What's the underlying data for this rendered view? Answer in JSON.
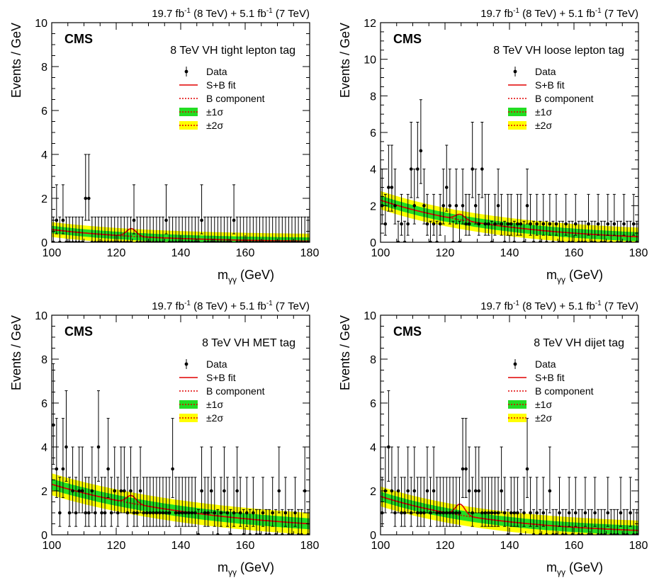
{
  "page": {
    "lumi_main": "19.7 fb",
    "lumi_sup": "-1",
    "lumi_mid": " (8 TeV) + 5.1 fb",
    "lumi_sup2": "-1",
    "lumi_end": " (7 TeV)"
  },
  "colors": {
    "sb_fit": "#e00000",
    "b_component": "#e00000",
    "one_sigma": "#22dd22",
    "two_sigma": "#ffff00",
    "data": "#000000"
  },
  "chart_data": [
    {
      "type": "scatter",
      "tag": "8 TeV VH tight lepton tag",
      "experiment": "CMS",
      "xlabel": "m",
      "xlabel_sub": "γγ",
      "xlabel_unit": " (GeV)",
      "ylabel": "Events / GeV",
      "xlim": [
        100,
        180
      ],
      "ylim": [
        0,
        10
      ],
      "xticks": [
        100,
        120,
        140,
        160,
        180
      ],
      "yticks": [
        0,
        2,
        4,
        6,
        8,
        10
      ],
      "legend": [
        "Data",
        "S+B fit",
        "B component",
        "±1σ",
        "±2σ"
      ],
      "legend_position": "top-right",
      "background": {
        "b0": 0.58,
        "b180": 0.05,
        "band1": 0.17,
        "band2": 0.34
      },
      "signal": {
        "mass": 124.7,
        "amplitude": 0.35,
        "width": 1.5
      },
      "data_points": {
        "100": 0,
        "101": 1,
        "103": 1,
        "110": 2,
        "111": 2,
        "125": 1,
        "135": 1,
        "146": 1,
        "156": 1
      }
    },
    {
      "type": "scatter",
      "tag": "8 TeV VH loose lepton tag",
      "experiment": "CMS",
      "xlabel": "m",
      "xlabel_sub": "γγ",
      "xlabel_unit": " (GeV)",
      "ylabel": "Events / GeV",
      "xlim": [
        100,
        180
      ],
      "ylim": [
        0,
        12
      ],
      "xticks": [
        100,
        120,
        140,
        160,
        180
      ],
      "yticks": [
        0,
        2,
        4,
        6,
        8,
        10,
        12
      ],
      "legend": [
        "Data",
        "S+B fit",
        "B component",
        "±1σ",
        "±2σ"
      ],
      "legend_position": "top-right",
      "background": {
        "b0": 2.3,
        "b180": 0.3,
        "band1": 0.25,
        "band2": 0.5
      },
      "signal": {
        "mass": 124.7,
        "amplitude": 0.3,
        "width": 1.5
      },
      "data_points": {
        "100": 2,
        "101": 1,
        "102": 3,
        "103": 3,
        "104": 2,
        "106": 1,
        "108": 1,
        "109": 4,
        "110": 2,
        "111": 4,
        "112": 5,
        "113": 2,
        "114": 1,
        "116": 1,
        "118": 1,
        "119": 2,
        "120": 3,
        "121": 2,
        "123": 2,
        "125": 2,
        "126": 1,
        "127": 1,
        "128": 4,
        "129": 2,
        "130": 1,
        "131": 4,
        "132": 1,
        "133": 1,
        "135": 1,
        "136": 2,
        "137": 1,
        "139": 1,
        "140": 1,
        "142": 1,
        "143": 1,
        "145": 2,
        "146": 1,
        "148": 1,
        "150": 1,
        "152": 1,
        "154": 1,
        "157": 1,
        "160": 1,
        "164": 1,
        "167": 1,
        "170": 1,
        "172": 1,
        "175": 1,
        "178": 1
      }
    },
    {
      "type": "scatter",
      "tag": "8 TeV VH MET tag",
      "experiment": "CMS",
      "xlabel": "m",
      "xlabel_sub": "γγ",
      "xlabel_unit": " (GeV)",
      "ylabel": "Events / GeV",
      "xlim": [
        100,
        180
      ],
      "ylim": [
        0,
        10
      ],
      "xticks": [
        100,
        120,
        140,
        160,
        180
      ],
      "yticks": [
        0,
        2,
        4,
        6,
        8,
        10
      ],
      "legend": [
        "Data",
        "S+B fit",
        "B component",
        "±1σ",
        "±2σ"
      ],
      "legend_position": "top-right",
      "background": {
        "b0": 2.3,
        "b180": 0.5,
        "band1": 0.25,
        "band2": 0.5
      },
      "signal": {
        "mass": 124.7,
        "amplitude": 0.35,
        "width": 1.5
      },
      "data_points": {
        "100": 5,
        "101": 3,
        "102": 1,
        "103": 3,
        "104": 4,
        "105": 1,
        "106": 2,
        "107": 1,
        "108": 2,
        "109": 2,
        "110": 1,
        "111": 1,
        "112": 2,
        "113": 1,
        "114": 4,
        "115": 1,
        "116": 1,
        "117": 3,
        "118": 1,
        "119": 2,
        "120": 1,
        "121": 2,
        "122": 2,
        "123": 1,
        "124": 2,
        "125": 1,
        "126": 1,
        "127": 2,
        "128": 1,
        "129": 1,
        "130": 1,
        "131": 1,
        "132": 1,
        "133": 1,
        "134": 1,
        "135": 1,
        "136": 1,
        "137": 3,
        "138": 1,
        "139": 1,
        "140": 1,
        "141": 1,
        "142": 1,
        "143": 1,
        "144": 1,
        "146": 2,
        "147": 1,
        "148": 1,
        "149": 2,
        "150": 1,
        "152": 1,
        "153": 2,
        "154": 1,
        "156": 1,
        "157": 2,
        "158": 1,
        "160": 1,
        "162": 1,
        "165": 1,
        "168": 1,
        "170": 2,
        "172": 1,
        "175": 1,
        "178": 2
      }
    },
    {
      "type": "scatter",
      "tag": "8 TeV VH dijet tag",
      "experiment": "CMS",
      "xlabel": "m",
      "xlabel_sub": "γγ",
      "xlabel_unit": " (GeV)",
      "ylabel": "Events / GeV",
      "xlim": [
        100,
        180
      ],
      "ylim": [
        0,
        10
      ],
      "xticks": [
        100,
        120,
        140,
        160,
        180
      ],
      "yticks": [
        0,
        2,
        4,
        6,
        8,
        10
      ],
      "legend": [
        "Data",
        "S+B fit",
        "B component",
        "±1σ",
        "±2σ"
      ],
      "legend_position": "top-right",
      "background": {
        "b0": 1.75,
        "b180": 0.2,
        "band1": 0.22,
        "band2": 0.45
      },
      "signal": {
        "mass": 124.7,
        "amplitude": 0.5,
        "width": 1.5
      },
      "data_points": {
        "100": 1,
        "101": 2,
        "102": 4,
        "103": 2,
        "104": 1,
        "105": 2,
        "106": 1,
        "107": 1,
        "108": 2,
        "109": 1,
        "110": 2,
        "111": 1,
        "112": 1,
        "113": 1,
        "114": 2,
        "115": 1,
        "116": 2,
        "117": 1,
        "118": 1,
        "119": 1,
        "120": 1,
        "121": 1,
        "122": 1,
        "123": 1,
        "124": 1,
        "125": 3,
        "126": 3,
        "127": 2,
        "128": 1,
        "129": 2,
        "130": 2,
        "131": 1,
        "132": 1,
        "133": 1,
        "134": 1,
        "135": 1,
        "136": 1,
        "137": 2,
        "138": 1,
        "140": 1,
        "141": 1,
        "142": 1,
        "144": 1,
        "145": 3,
        "146": 1,
        "148": 1,
        "150": 1,
        "152": 2,
        "155": 1,
        "158": 1,
        "160": 1,
        "163": 1,
        "166": 1,
        "170": 1,
        "174": 1,
        "177": 1
      }
    }
  ]
}
